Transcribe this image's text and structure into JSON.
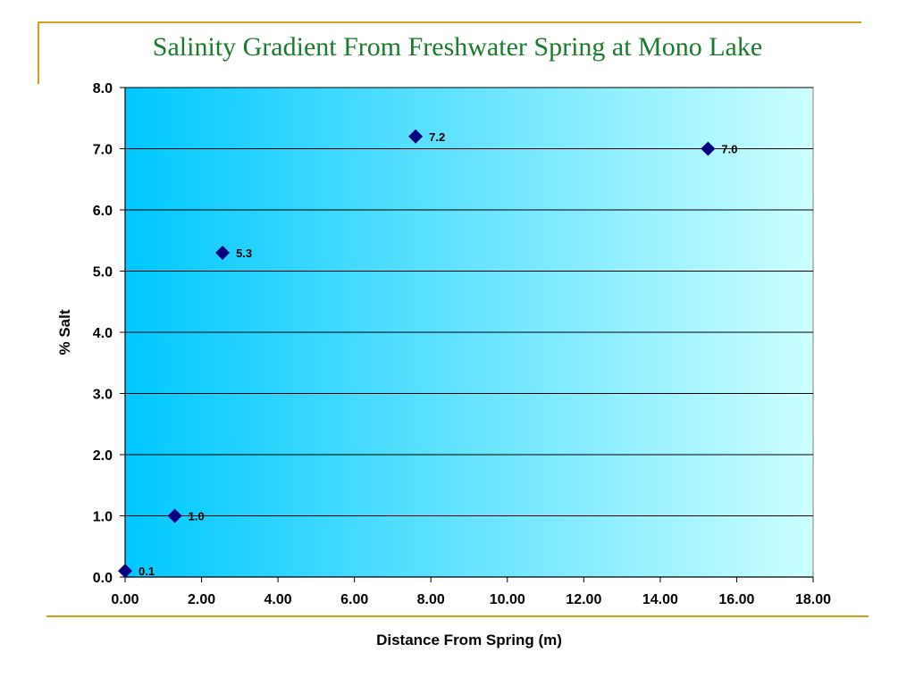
{
  "slide": {
    "title": "Salinity Gradient From Freshwater Spring at Mono Lake",
    "accent_color": "#d4a017",
    "title_color": "#1a7a2e"
  },
  "chart_data": {
    "type": "scatter",
    "title": "",
    "xlabel": "Distance From Spring (m)",
    "ylabel": "% Salt",
    "xlim": [
      0,
      18
    ],
    "ylim": [
      0,
      8
    ],
    "xticks": [
      "0.00",
      "2.00",
      "4.00",
      "6.00",
      "8.00",
      "10.00",
      "12.00",
      "14.00",
      "16.00",
      "18.00"
    ],
    "yticks": [
      "0.0",
      "1.0",
      "2.0",
      "3.0",
      "4.0",
      "5.0",
      "6.0",
      "7.0",
      "8.0"
    ],
    "grid": "horizontal",
    "marker": "diamond",
    "marker_color": "#000080",
    "background_gradient": [
      "#00c8ff",
      "#ccffff"
    ],
    "points": [
      {
        "x": 0.0,
        "y": 0.1,
        "label": "0.1"
      },
      {
        "x": 1.3,
        "y": 1.0,
        "label": "1.0"
      },
      {
        "x": 2.55,
        "y": 5.3,
        "label": "5.3"
      },
      {
        "x": 7.6,
        "y": 7.2,
        "label": "7.2"
      },
      {
        "x": 15.25,
        "y": 7.0,
        "label": "7.0"
      }
    ]
  }
}
